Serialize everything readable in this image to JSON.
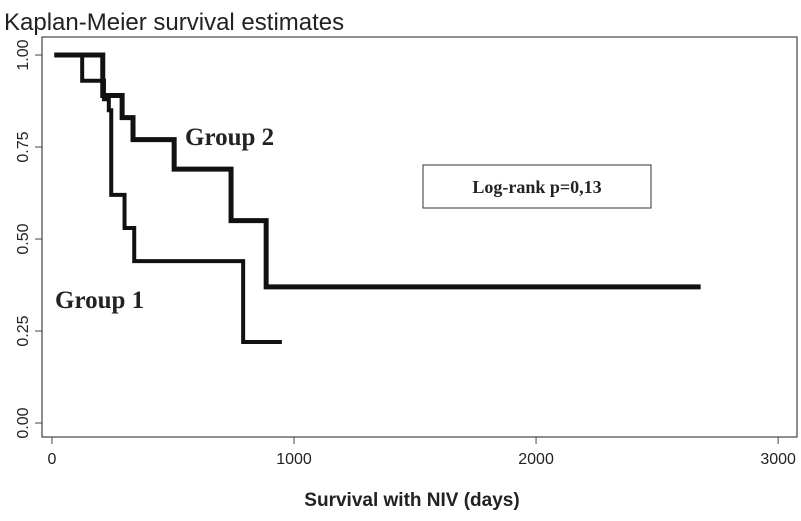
{
  "chart_data": {
    "type": "line",
    "title": "Kaplan-Meier survival estimates",
    "xlabel": "Survival with NIV (days)",
    "xlim": [
      -41,
      3078
    ],
    "ylim": [
      -0.038,
      1.049
    ],
    "xticks": [
      0,
      1000,
      2000,
      3000
    ],
    "yticks": [
      {
        "value": 0,
        "label": "0.00"
      },
      {
        "value": 0.25,
        "label": "0.25"
      },
      {
        "value": 0.5,
        "label": "0.50"
      },
      {
        "value": 0.75,
        "label": "0.75"
      },
      {
        "value": 1,
        "label": "1.00"
      }
    ],
    "series": [
      {
        "name": "Group 1",
        "color": "#111111",
        "x": [
          10,
          125,
          125,
          215,
          215,
          235,
          235,
          245,
          245,
          300,
          300,
          340,
          340,
          790,
          790,
          950
        ],
        "values": [
          1,
          1,
          0.93,
          0.93,
          0.88,
          0.88,
          0.85,
          0.85,
          0.62,
          0.62,
          0.53,
          0.53,
          0.44,
          0.44,
          0.22,
          0.22
        ]
      },
      {
        "name": "Group 2",
        "color": "#111111",
        "x": [
          10,
          210,
          210,
          290,
          290,
          335,
          335,
          505,
          505,
          740,
          740,
          885,
          885,
          2680
        ],
        "values": [
          1,
          1,
          0.89,
          0.89,
          0.83,
          0.83,
          0.77,
          0.77,
          0.69,
          0.69,
          0.55,
          0.55,
          0.37,
          0.37
        ]
      }
    ],
    "annotations": [
      "Group 2",
      "Group 1",
      "Log-rank  p=0,13"
    ]
  }
}
